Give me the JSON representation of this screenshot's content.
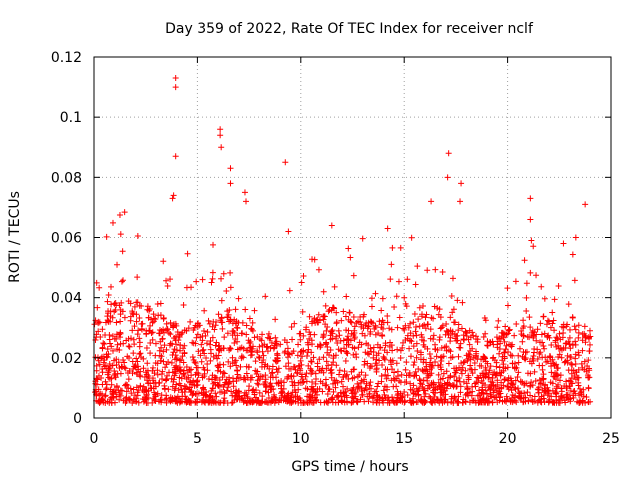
{
  "chart_data": {
    "type": "scatter",
    "title": "Day 359 of 2022, Rate Of TEC Index for receiver nclf",
    "xlabel": "GPS time / hours",
    "ylabel": "ROTI / TECUs",
    "xlim": [
      0,
      25
    ],
    "ylim": [
      0,
      0.12
    ],
    "xticks": [
      0,
      5,
      10,
      15,
      20,
      25
    ],
    "xtick_labels": [
      "0",
      "5",
      "10",
      "15",
      "20",
      "25"
    ],
    "yticks": [
      0,
      0.02,
      0.04,
      0.06,
      0.08,
      0.1,
      0.12
    ],
    "ytick_labels": [
      "0",
      "0.02",
      "0.04",
      "0.06",
      "0.08",
      "0.1",
      "0.12"
    ],
    "grid": true,
    "marker": "+",
    "color": "#ff0000",
    "series": [
      {
        "name": "ROTI",
        "data_range": [
          0,
          24
        ],
        "typical_band": [
          0.005,
          0.03
        ],
        "notable_points": [
          {
            "x": 3.95,
            "y": 0.113
          },
          {
            "x": 3.95,
            "y": 0.11
          },
          {
            "x": 3.95,
            "y": 0.087
          },
          {
            "x": 3.85,
            "y": 0.074
          },
          {
            "x": 3.8,
            "y": 0.073
          },
          {
            "x": 6.1,
            "y": 0.096
          },
          {
            "x": 6.1,
            "y": 0.094
          },
          {
            "x": 6.15,
            "y": 0.09
          },
          {
            "x": 6.6,
            "y": 0.083
          },
          {
            "x": 6.6,
            "y": 0.078
          },
          {
            "x": 7.3,
            "y": 0.075
          },
          {
            "x": 7.35,
            "y": 0.072
          },
          {
            "x": 9.25,
            "y": 0.085
          },
          {
            "x": 9.4,
            "y": 0.062
          },
          {
            "x": 11.5,
            "y": 0.064
          },
          {
            "x": 14.2,
            "y": 0.063
          },
          {
            "x": 16.3,
            "y": 0.072
          },
          {
            "x": 17.15,
            "y": 0.088
          },
          {
            "x": 17.1,
            "y": 0.08
          },
          {
            "x": 17.75,
            "y": 0.078
          },
          {
            "x": 17.7,
            "y": 0.072
          },
          {
            "x": 21.1,
            "y": 0.073
          },
          {
            "x": 21.1,
            "y": 0.066
          },
          {
            "x": 21.15,
            "y": 0.059
          },
          {
            "x": 23.75,
            "y": 0.071
          },
          {
            "x": 22.7,
            "y": 0.058
          },
          {
            "x": 23.3,
            "y": 0.06
          }
        ]
      }
    ]
  }
}
